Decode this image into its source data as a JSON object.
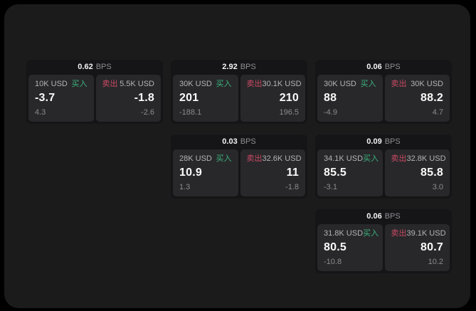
{
  "page": {
    "background": "#000000",
    "surface": "#1b1b1c"
  },
  "colors": {
    "buy_accent": "#3cb27f",
    "sell_accent": "#c94a63",
    "card_bg": "#151517",
    "panel_bg": "#28282a",
    "value_text": "#fafafa",
    "label_text": "#b3b3b7",
    "muted_text": "#8b8b8f"
  },
  "cards": [
    {
      "bps": "0.62",
      "unit": "BPS",
      "buy": {
        "amount": "10K USD",
        "side": "买入",
        "price": "-3.7",
        "delta": "4.3"
      },
      "sell": {
        "side": "卖出",
        "amount": "5.5K USD",
        "price": "-1.8",
        "delta": "-2.6"
      }
    },
    {
      "bps": "2.92",
      "unit": "BPS",
      "buy": {
        "amount": "30K USD",
        "side": "买入",
        "price": "201",
        "delta": "-188.1"
      },
      "sell": {
        "side": "卖出",
        "amount": "30.1K USD",
        "price": "210",
        "delta": "196.5"
      }
    },
    {
      "bps": "0.06",
      "unit": "BPS",
      "buy": {
        "amount": "30K USD",
        "side": "买入",
        "price": "88",
        "delta": "-4.9"
      },
      "sell": {
        "side": "卖出",
        "amount": "30K USD",
        "price": "88.2",
        "delta": "4.7"
      }
    },
    {
      "bps": "0.03",
      "unit": "BPS",
      "buy": {
        "amount": "28K USD",
        "side": "买入",
        "price": "10.9",
        "delta": "1.3"
      },
      "sell": {
        "side": "卖出",
        "amount": "32.6K USD",
        "price": "11",
        "delta": "-1.8"
      }
    },
    {
      "bps": "0.09",
      "unit": "BPS",
      "buy": {
        "amount": "34.1K USD",
        "side": "买入",
        "price": "85.5",
        "delta": "-3.1"
      },
      "sell": {
        "side": "卖出",
        "amount": "32.8K USD",
        "price": "85.8",
        "delta": "3.0"
      }
    },
    {
      "bps": "0.06",
      "unit": "BPS",
      "buy": {
        "amount": "31.8K USD",
        "side": "买入",
        "price": "80.5",
        "delta": "-10.8"
      },
      "sell": {
        "side": "卖出",
        "amount": "39.1K USD",
        "price": "80.7",
        "delta": "10.2"
      }
    }
  ]
}
